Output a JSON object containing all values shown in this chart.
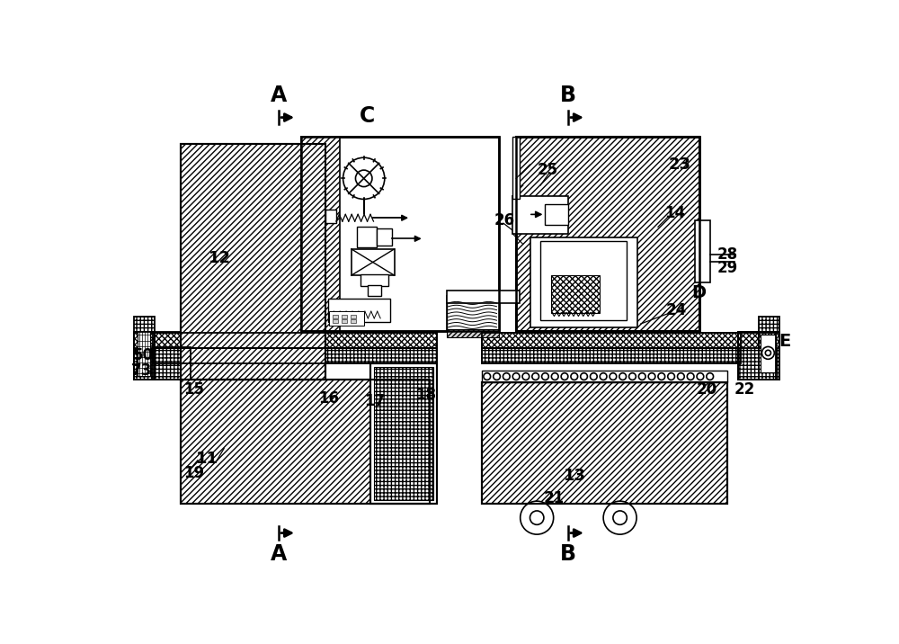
{
  "bg": "#ffffff",
  "lw": 1.2,
  "fig_w": 10.0,
  "fig_h": 7.16,
  "labels": {
    "11": "11",
    "12": "12",
    "13": "13",
    "14": "14",
    "15": "15",
    "16": "16",
    "17": "17",
    "18": "18",
    "19": "19",
    "20": "20",
    "21": "21",
    "22": "22",
    "23": "23",
    "24": "24",
    "25": "25",
    "26": "26",
    "28": "28",
    "29": "29",
    "50": "50",
    "73": "73",
    "A": "A",
    "B": "B",
    "C": "C",
    "D": "D",
    "E": "E"
  }
}
